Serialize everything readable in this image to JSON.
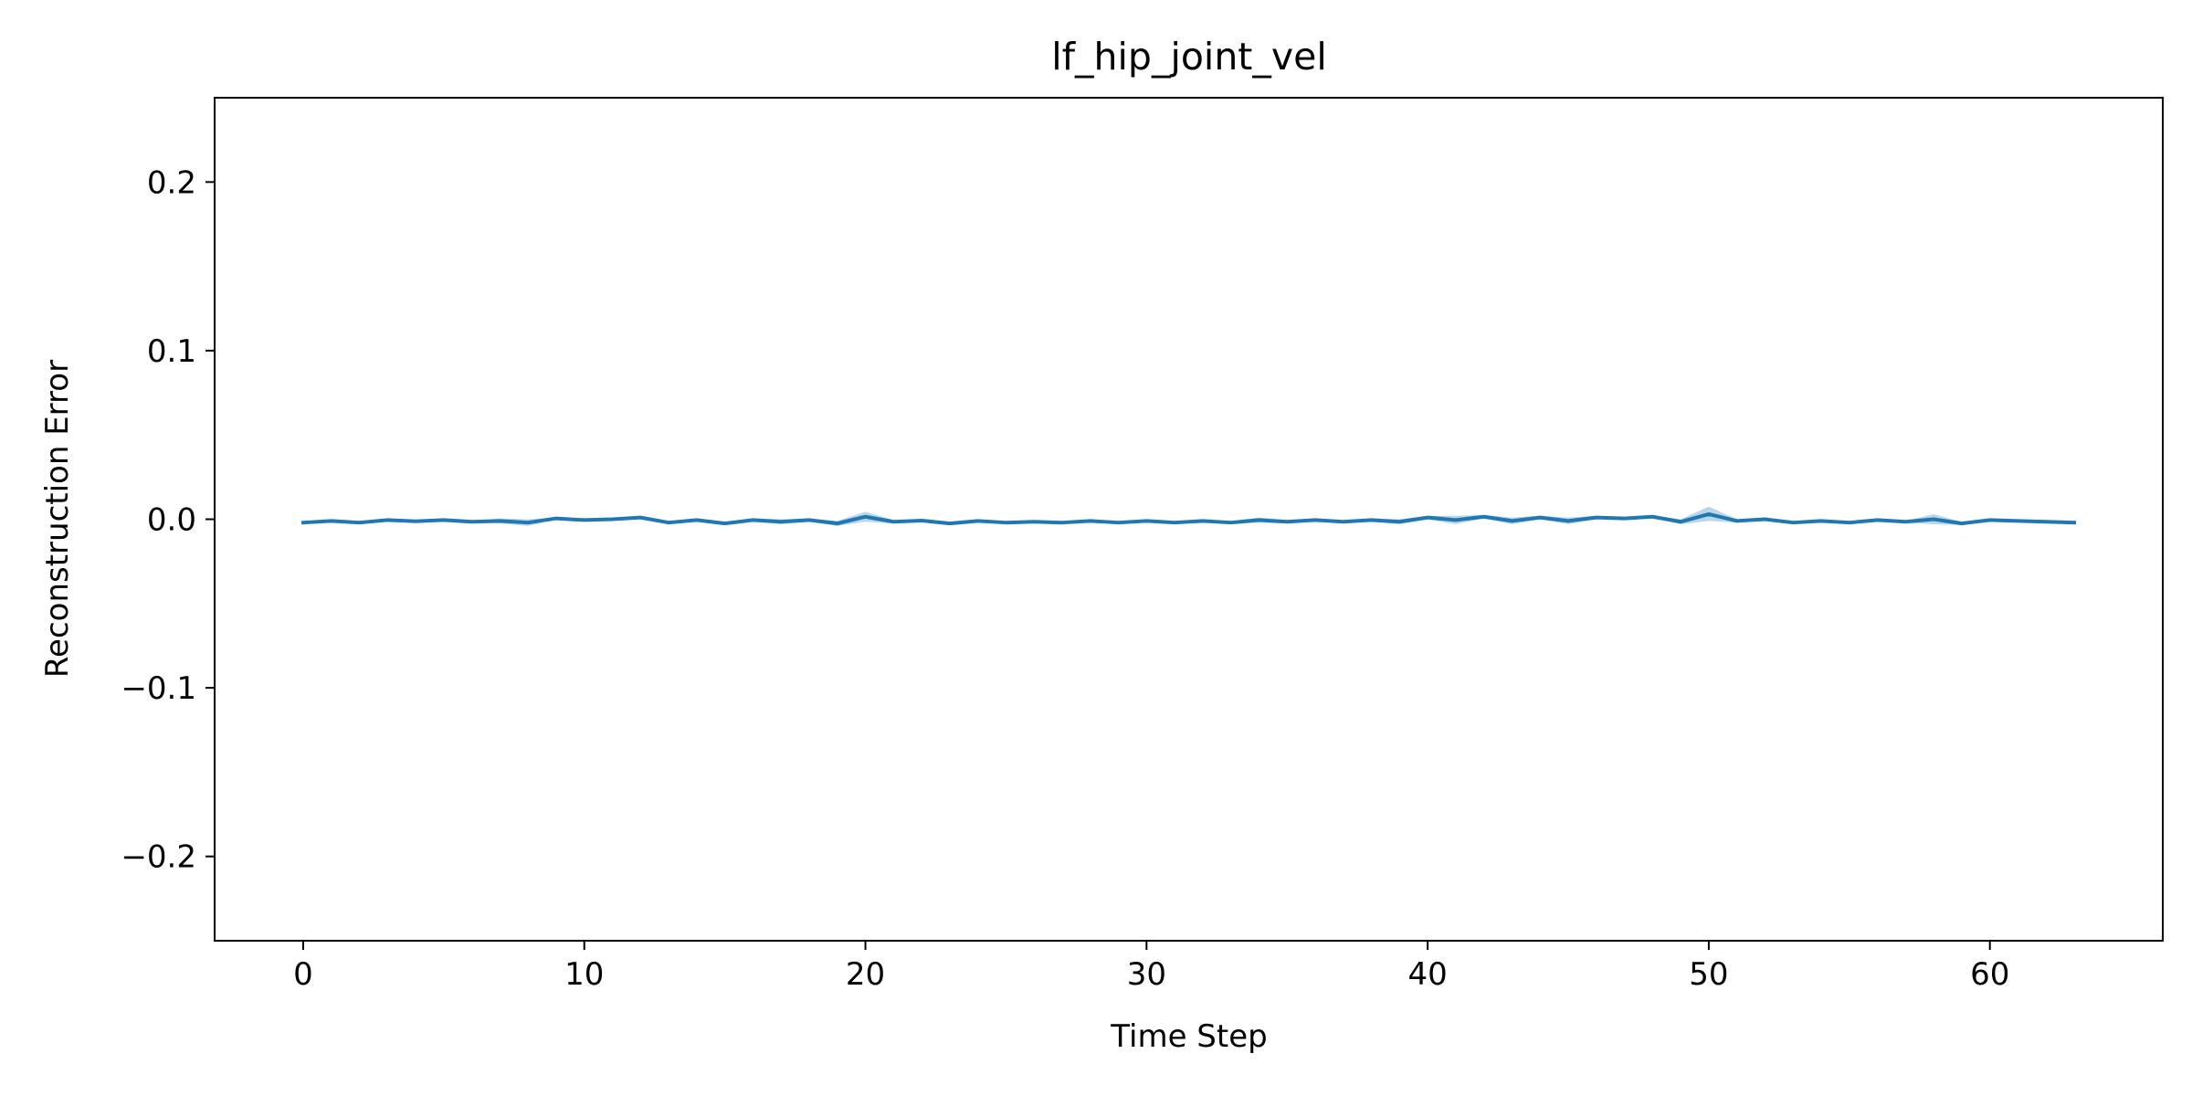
{
  "chart_data": {
    "type": "line",
    "title": "lf_hip_joint_vel",
    "xlabel": "Time Step",
    "ylabel": "Reconstruction Error",
    "xlim": [
      -3.15,
      66.15
    ],
    "ylim": [
      -0.25,
      0.25
    ],
    "xticks": [
      0,
      10,
      20,
      30,
      40,
      50,
      60
    ],
    "xtick_labels": [
      "0",
      "10",
      "20",
      "30",
      "40",
      "50",
      "60"
    ],
    "yticks": [
      -0.2,
      -0.1,
      0.0,
      0.1,
      0.2
    ],
    "ytick_labels": [
      "−0.2",
      "−0.1",
      "0.0",
      "0.1",
      "0.2"
    ],
    "grid": false,
    "legend": "none",
    "colors": {
      "line": "#1f77b4",
      "band": "#1f77b4",
      "axes": "#000000"
    },
    "series": [
      {
        "x": [
          0,
          1,
          2,
          3,
          4,
          5,
          6,
          7,
          8,
          9,
          10,
          11,
          12,
          13,
          14,
          15,
          16,
          17,
          18,
          19,
          20,
          21,
          22,
          23,
          24,
          25,
          26,
          27,
          28,
          29,
          30,
          31,
          32,
          33,
          34,
          35,
          36,
          37,
          38,
          39,
          40,
          41,
          42,
          43,
          44,
          45,
          46,
          47,
          48,
          49,
          50,
          51,
          52,
          53,
          54,
          55,
          56,
          57,
          58,
          59,
          60,
          61,
          62,
          63
        ],
        "values": [
          -0.002,
          -0.001,
          -0.002,
          -0.0005,
          -0.0012,
          -0.0005,
          -0.0015,
          -0.001,
          -0.002,
          0.0005,
          -0.0005,
          0,
          0.001,
          -0.002,
          -0.0005,
          -0.0025,
          -0.0005,
          -0.0015,
          -0.0005,
          -0.0025,
          0.0015,
          -0.0015,
          -0.0008,
          -0.0025,
          -0.001,
          -0.002,
          -0.0015,
          -0.002,
          -0.001,
          -0.002,
          -0.001,
          -0.002,
          -0.001,
          -0.002,
          -0.0005,
          -0.0015,
          -0.0005,
          -0.0015,
          -0.0005,
          -0.0015,
          0.001,
          -0.0005,
          0.0015,
          -0.001,
          0.001,
          -0.001,
          0.001,
          0.0005,
          0.0015,
          -0.0015,
          0.003,
          -0.001,
          0,
          -0.002,
          -0.001,
          -0.002,
          -0.0005,
          -0.0015,
          0,
          -0.0025,
          -0.0005,
          -0.001,
          -0.0015,
          -0.002
        ],
        "band_lower": [
          -0.0025,
          -0.0015,
          -0.0025,
          -0.001,
          -0.0017,
          -0.001,
          -0.002,
          -0.0025,
          -0.004,
          0,
          -0.001,
          -0.0005,
          0.0005,
          -0.003,
          -0.0015,
          -0.0035,
          -0.0015,
          -0.003,
          -0.0015,
          -0.004,
          -0.0015,
          -0.0025,
          -0.0013,
          -0.003,
          -0.0015,
          -0.0025,
          -0.002,
          -0.0025,
          -0.0015,
          -0.0025,
          -0.0015,
          -0.0025,
          -0.0015,
          -0.003,
          -0.002,
          -0.0025,
          -0.0015,
          -0.002,
          -0.0015,
          -0.003,
          0,
          -0.003,
          0.0005,
          -0.003,
          0,
          -0.003,
          0,
          0,
          0.001,
          -0.003,
          -0.001,
          -0.002,
          -0.0005,
          -0.003,
          -0.0015,
          -0.003,
          -0.001,
          -0.002,
          -0.003,
          -0.0035,
          -0.001,
          -0.0015,
          -0.002,
          -0.0025
        ],
        "band_upper": [
          -0.0015,
          -0.0005,
          -0.0015,
          0,
          -0.0007,
          0,
          -0.001,
          0.0005,
          0,
          0.001,
          0,
          0.0005,
          0.0015,
          -0.001,
          0.0005,
          -0.0015,
          0.0005,
          0,
          0.0005,
          -0.001,
          0.0045,
          -0.0005,
          -0.0003,
          -0.002,
          -0.0005,
          -0.0015,
          -0.001,
          -0.0015,
          -0.0005,
          -0.0015,
          -0.0005,
          -0.0015,
          -0.0005,
          -0.001,
          0.001,
          -0.0005,
          0.0005,
          -0.001,
          0.0005,
          0,
          0.002,
          0.002,
          0.0025,
          0.001,
          0.002,
          0.001,
          0.002,
          0.001,
          0.002,
          0,
          0.0075,
          0,
          0.0005,
          -0.001,
          -0.0005,
          -0.001,
          0,
          -0.001,
          0.003,
          -0.0015,
          0,
          -0.0005,
          -0.001,
          -0.0015
        ]
      }
    ]
  }
}
